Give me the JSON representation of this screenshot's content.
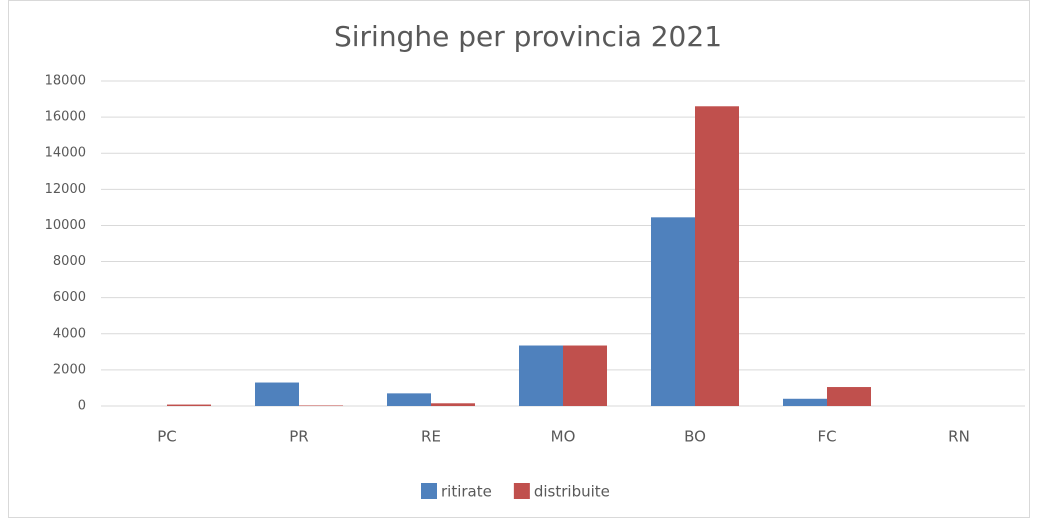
{
  "chart_data": {
    "type": "bar",
    "title": "Siringhe per provincia 2021",
    "categories": [
      "PC",
      "PR",
      "RE",
      "MO",
      "BO",
      "FC",
      "RN"
    ],
    "series": [
      {
        "name": "ritirate",
        "color": "#4f81bd",
        "values": [
          0,
          1300,
          700,
          3350,
          10450,
          400,
          0
        ]
      },
      {
        "name": "distribuite",
        "color": "#c0504d",
        "values": [
          80,
          30,
          150,
          3350,
          16600,
          1050,
          0
        ]
      }
    ],
    "ylim": [
      0,
      18000
    ],
    "yticks": [
      0,
      2000,
      4000,
      6000,
      8000,
      10000,
      12000,
      14000,
      16000,
      18000
    ],
    "grid": true,
    "legend": "bottom"
  }
}
